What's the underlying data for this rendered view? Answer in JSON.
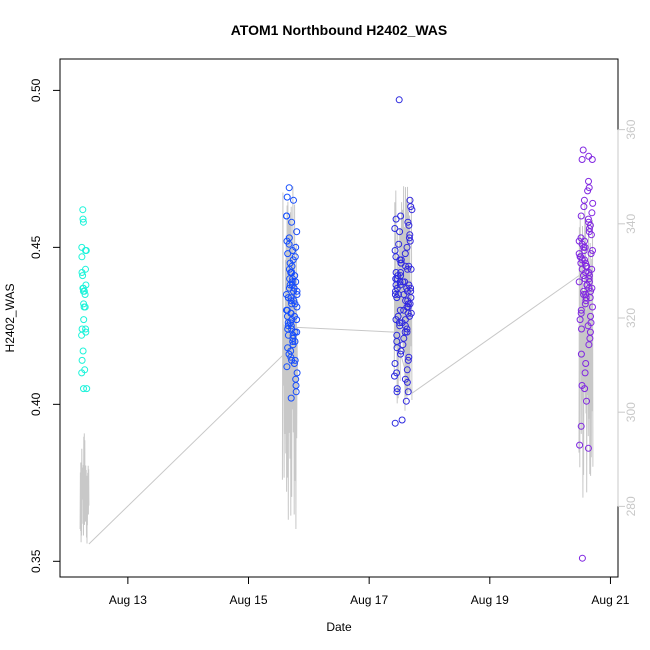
{
  "chart_data": {
    "type": "scatter",
    "title": "ATOM1 Northbound H2402_WAS",
    "xlabel": "Date",
    "ylabel": "H2402_WAS",
    "xlim": [
      "2024-08-11 21:00",
      "2024-08-21 03:00"
    ],
    "ylim": [
      0.345,
      0.51
    ],
    "y2lim": [
      265,
      375
    ],
    "x_ticks": [
      {
        "date": "2024-08-13",
        "label": "Aug 13"
      },
      {
        "date": "2024-08-15",
        "label": "Aug 15"
      },
      {
        "date": "2024-08-17",
        "label": "Aug 17"
      },
      {
        "date": "2024-08-19",
        "label": "Aug 19"
      },
      {
        "date": "2024-08-21",
        "label": "Aug 21"
      }
    ],
    "y_ticks": [
      "0.35",
      "0.40",
      "0.45",
      "0.50"
    ],
    "y2_ticks": [
      "280",
      "300",
      "320",
      "340",
      "360"
    ],
    "marker": "open-circle",
    "point_color_scale": [
      "#1dffd0",
      "#1ec8ff",
      "#1450ff",
      "#2a2adf",
      "#6a1ee0",
      "#8a2be2"
    ],
    "secondary_line_color": "#c8c8c8",
    "secondary_axis_color": "#c8c8c8",
    "grid": false,
    "legend": "none",
    "clusters": [
      {
        "date": "2024-08-12",
        "hour_start": 5.5,
        "hour_end": 7.8,
        "color": "#1dffd0",
        "values": [
          0.462,
          0.459,
          0.458,
          0.45,
          0.449,
          0.449,
          0.447,
          0.443,
          0.442,
          0.441,
          0.438,
          0.437,
          0.437,
          0.436,
          0.436,
          0.435,
          0.432,
          0.431,
          0.431,
          0.427,
          0.424,
          0.424,
          0.423,
          0.422,
          0.417,
          0.414,
          0.411,
          0.41,
          0.405,
          0.405
        ],
        "line": {
          "start_hour": 5.0,
          "end_hour": 8.5,
          "min": 272,
          "max": 298
        }
      },
      {
        "date": "2024-08-15",
        "hour_start": 15.0,
        "hour_end": 19.5,
        "color": "#1ec8ff",
        "values": [
          0.469,
          0.466,
          0.465,
          0.46,
          0.46,
          0.458,
          0.455,
          0.453,
          0.452,
          0.451,
          0.45,
          0.449,
          0.448,
          0.447,
          0.446,
          0.445,
          0.444,
          0.443,
          0.442,
          0.442,
          0.441,
          0.44,
          0.44,
          0.439,
          0.439,
          0.438,
          0.438,
          0.437,
          0.437,
          0.436,
          0.436,
          0.435,
          0.435,
          0.434,
          0.434,
          0.433,
          0.433,
          0.432,
          0.432,
          0.431,
          0.43,
          0.43,
          0.429,
          0.429,
          0.428,
          0.428,
          0.427,
          0.427,
          0.426,
          0.426,
          0.425,
          0.425,
          0.424,
          0.424,
          0.423,
          0.423,
          0.422,
          0.422,
          0.421,
          0.42,
          0.42,
          0.419,
          0.418,
          0.417,
          0.416,
          0.415,
          0.414,
          0.414,
          0.413,
          0.412,
          0.41,
          0.408,
          0.406,
          0.404,
          0.402
        ],
        "line": {
          "start_hour": 13.5,
          "end_hour": 19.5,
          "min": 275,
          "max": 348
        }
      },
      {
        "date": "2024-08-17",
        "hour_start": 10.0,
        "hour_end": 17.0,
        "color": "#1c3ce8",
        "values": [
          0.497,
          0.465,
          0.463,
          0.462,
          0.46,
          0.459,
          0.458,
          0.457,
          0.456,
          0.455,
          0.454,
          0.453,
          0.452,
          0.451,
          0.45,
          0.449,
          0.448,
          0.447,
          0.446,
          0.446,
          0.445,
          0.445,
          0.444,
          0.444,
          0.443,
          0.443,
          0.442,
          0.442,
          0.441,
          0.441,
          0.44,
          0.44,
          0.44,
          0.439,
          0.439,
          0.439,
          0.438,
          0.438,
          0.438,
          0.437,
          0.437,
          0.437,
          0.436,
          0.436,
          0.436,
          0.435,
          0.435,
          0.435,
          0.434,
          0.434,
          0.433,
          0.433,
          0.432,
          0.432,
          0.431,
          0.431,
          0.43,
          0.43,
          0.429,
          0.429,
          0.428,
          0.428,
          0.427,
          0.427,
          0.426,
          0.426,
          0.425,
          0.425,
          0.424,
          0.423,
          0.423,
          0.422,
          0.421,
          0.42,
          0.419,
          0.418,
          0.417,
          0.416,
          0.415,
          0.414,
          0.413,
          0.411,
          0.41,
          0.409,
          0.408,
          0.407,
          0.405,
          0.404,
          0.404,
          0.401,
          0.395,
          0.394
        ],
        "line": {
          "start_hour": 10.0,
          "end_hour": 17.0,
          "min": 300,
          "max": 348
        }
      },
      {
        "date": "2024-08-20",
        "hour_start": 11.5,
        "hour_end": 17.0,
        "color": "#7a28e0",
        "values": [
          0.481,
          0.479,
          0.478,
          0.478,
          0.471,
          0.469,
          0.468,
          0.465,
          0.464,
          0.463,
          0.461,
          0.46,
          0.459,
          0.458,
          0.457,
          0.456,
          0.455,
          0.454,
          0.453,
          0.452,
          0.452,
          0.451,
          0.45,
          0.45,
          0.449,
          0.449,
          0.448,
          0.448,
          0.447,
          0.447,
          0.446,
          0.446,
          0.445,
          0.445,
          0.444,
          0.444,
          0.443,
          0.443,
          0.442,
          0.442,
          0.441,
          0.441,
          0.44,
          0.44,
          0.439,
          0.439,
          0.438,
          0.438,
          0.437,
          0.437,
          0.436,
          0.436,
          0.435,
          0.435,
          0.434,
          0.434,
          0.433,
          0.432,
          0.431,
          0.43,
          0.429,
          0.428,
          0.427,
          0.426,
          0.425,
          0.424,
          0.423,
          0.421,
          0.419,
          0.416,
          0.413,
          0.41,
          0.406,
          0.405,
          0.401,
          0.393,
          0.387,
          0.386,
          0.351
        ],
        "line": {
          "start_hour": 11.5,
          "end_hour": 17.0,
          "min": 278,
          "max": 348
        }
      }
    ],
    "connector_line": [
      {
        "date": "2024-08-12 08:30",
        "value": 272
      },
      {
        "date": "2024-08-15 13:30",
        "value": 312
      },
      {
        "date": "2024-08-15 19:30",
        "value": 318
      },
      {
        "date": "2024-08-17 10:00",
        "value": 317
      },
      {
        "date": "2024-08-17 17:00",
        "value": 304
      },
      {
        "date": "2024-08-20 11:30",
        "value": 329
      }
    ]
  }
}
